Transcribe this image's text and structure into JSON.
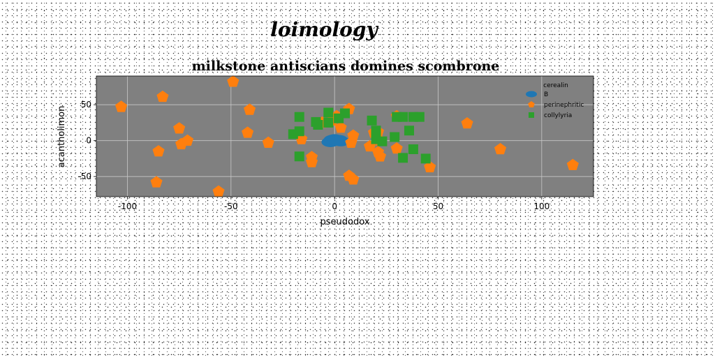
{
  "header": {
    "logo_text": "loimology"
  },
  "chart_data": {
    "type": "scatter",
    "title": "milkstone antiscians domines scombrone",
    "xlabel": "pseudodox",
    "ylabel": "acantholimon",
    "xlim": [
      -115,
      125
    ],
    "ylim": [
      -78,
      90
    ],
    "xticks": [
      -100,
      -50,
      0,
      50,
      100
    ],
    "yticks": [
      -50,
      0,
      50
    ],
    "grid": true,
    "legend": {
      "title": "cerealin",
      "position": "top-right"
    },
    "colors": {
      "plot_bg": "#808080",
      "grid": "#c8c8c8"
    },
    "series": [
      {
        "name": "B",
        "color": "#1f77b4",
        "marker": "ellipse",
        "points": [
          [
            -2,
            -2
          ],
          [
            -1,
            1
          ],
          [
            0,
            2
          ],
          [
            1,
            0
          ],
          [
            2,
            1
          ],
          [
            3,
            -1
          ]
        ]
      },
      {
        "name": "perinephritic",
        "color": "#ff7f0e",
        "marker": "pentagon",
        "points": [
          [
            -103,
            47
          ],
          [
            -83,
            61
          ],
          [
            -75,
            17
          ],
          [
            -74,
            -5
          ],
          [
            -71,
            0
          ],
          [
            -85,
            -15
          ],
          [
            -86,
            -58
          ],
          [
            -56,
            -71
          ],
          [
            -49,
            82
          ],
          [
            -41,
            43
          ],
          [
            -42,
            11
          ],
          [
            -32,
            -3
          ],
          [
            -16,
            2
          ],
          [
            -11,
            -23
          ],
          [
            -11,
            -30
          ],
          [
            -6,
            25
          ],
          [
            -1,
            28
          ],
          [
            1,
            34
          ],
          [
            3,
            18
          ],
          [
            7,
            44
          ],
          [
            8,
            -3
          ],
          [
            9,
            7
          ],
          [
            7,
            -49
          ],
          [
            9,
            -54
          ],
          [
            19,
            11
          ],
          [
            17,
            -8
          ],
          [
            21,
            12
          ],
          [
            21,
            -16
          ],
          [
            22,
            -22
          ],
          [
            22,
            0
          ],
          [
            30,
            34
          ],
          [
            30,
            -11
          ],
          [
            46,
            -37
          ],
          [
            64,
            24
          ],
          [
            80,
            -12
          ],
          [
            115,
            -34
          ]
        ]
      },
      {
        "name": "collylyria",
        "color": "#2ca02c",
        "marker": "square",
        "points": [
          [
            -17,
            33
          ],
          [
            -17,
            13
          ],
          [
            -20,
            9
          ],
          [
            -17,
            -22
          ],
          [
            -8,
            22
          ],
          [
            -9,
            26
          ],
          [
            -3,
            39
          ],
          [
            -3,
            25
          ],
          [
            2,
            31
          ],
          [
            5,
            38
          ],
          [
            18,
            28
          ],
          [
            20,
            14
          ],
          [
            20,
            2
          ],
          [
            23,
            -1
          ],
          [
            30,
            33
          ],
          [
            33,
            33
          ],
          [
            36,
            14
          ],
          [
            38,
            33
          ],
          [
            41,
            33
          ],
          [
            29,
            5
          ],
          [
            33,
            -24
          ],
          [
            38,
            -12
          ],
          [
            44,
            -25
          ]
        ]
      }
    ]
  }
}
